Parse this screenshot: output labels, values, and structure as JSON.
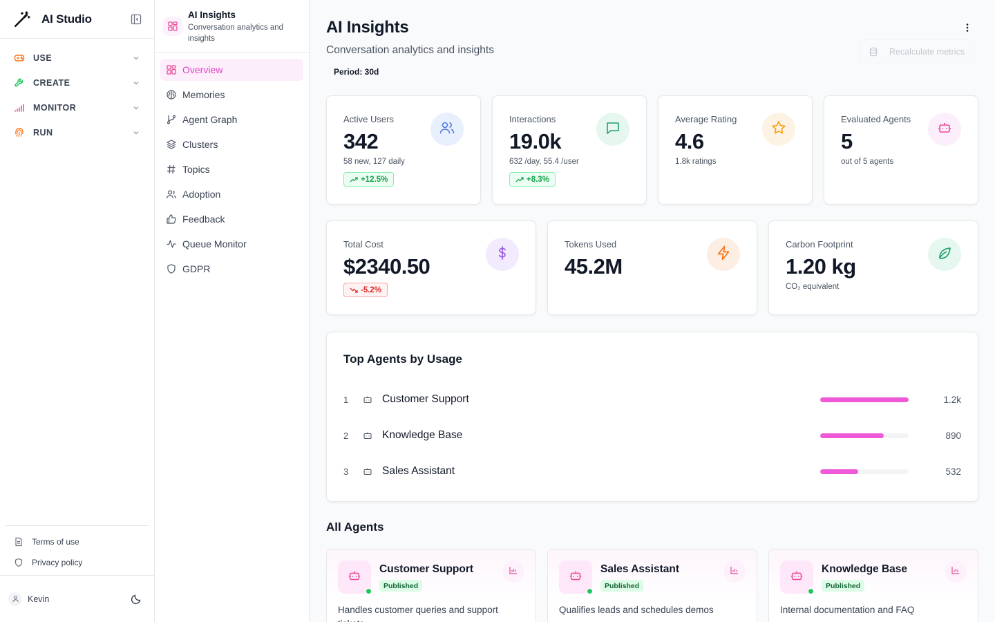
{
  "app": {
    "title": "AI Studio"
  },
  "nav": [
    {
      "label": "USE",
      "icon": "gamepad-icon",
      "color": "#f97316"
    },
    {
      "label": "CREATE",
      "icon": "wrench-icon",
      "color": "#22c55e"
    },
    {
      "label": "MONITOR",
      "icon": "signal-icon",
      "color": "#ec4899"
    },
    {
      "label": "RUN",
      "icon": "fingerprint-icon",
      "color": "#f97316"
    }
  ],
  "footer_links": {
    "terms": "Terms of use",
    "privacy": "Privacy policy"
  },
  "user": {
    "name": "Kevin"
  },
  "subnav": {
    "title": "AI Insights",
    "subtitle": "Conversation analytics and insights",
    "items": [
      "Overview",
      "Memories",
      "Agent Graph",
      "Clusters",
      "Topics",
      "Adoption",
      "Feedback",
      "Queue Monitor",
      "GDPR"
    ],
    "active": "Overview"
  },
  "header": {
    "title": "AI Insights",
    "subtitle": "Conversation analytics and insights",
    "period": "Period: 30d",
    "recalc_label": "Recalculate metrics"
  },
  "stats": [
    {
      "label": "Active Users",
      "value": "342",
      "sub": "58 new, 127 daily",
      "trend": "+12.5%"
    },
    {
      "label": "Interactions",
      "value": "19.0k",
      "sub": "632 /day, 55.4 /user",
      "trend": "+8.3%"
    },
    {
      "label": "Average Rating",
      "value": "4.6",
      "sub": "1.8k ratings"
    },
    {
      "label": "Evaluated Agents",
      "value": "5",
      "sub": "out of 5 agents"
    }
  ],
  "stats2": [
    {
      "label": "Total Cost",
      "value": "$2340.50",
      "trend": "-5.2%"
    },
    {
      "label": "Tokens Used",
      "value": "45.2M"
    },
    {
      "label": "Carbon Footprint",
      "value": "1.20 kg",
      "sub": "CO₂ equivalent"
    }
  ],
  "top_agents": {
    "title": "Top Agents by Usage",
    "rows": [
      {
        "rank": "1",
        "name": "Customer Support",
        "count": "1.2k",
        "fraction": 1.0
      },
      {
        "rank": "2",
        "name": "Knowledge Base",
        "count": "890",
        "fraction": 0.72
      },
      {
        "rank": "3",
        "name": "Sales Assistant",
        "count": "532",
        "fraction": 0.43
      }
    ]
  },
  "all_agents": {
    "title": "All Agents",
    "cards": [
      {
        "name": "Customer Support",
        "status": "Published",
        "desc": "Handles customer queries and support tickets"
      },
      {
        "name": "Sales Assistant",
        "status": "Published",
        "desc": "Qualifies leads and schedules demos"
      },
      {
        "name": "Knowledge Base",
        "status": "Published",
        "desc": "Internal documentation and FAQ"
      }
    ]
  },
  "colors": {
    "accent": "#ec4899",
    "accent_bg": "#fdeefb",
    "success": "#16a34a",
    "danger": "#dc2626"
  }
}
